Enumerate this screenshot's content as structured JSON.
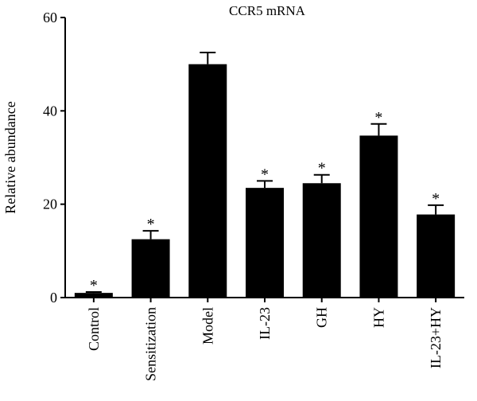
{
  "chart_data": {
    "type": "bar",
    "title": "CCR5 mRNA",
    "xlabel": "",
    "ylabel": "Relative abundance",
    "ylim": [
      0,
      60
    ],
    "yticks": [
      0,
      20,
      40,
      60
    ],
    "grid": false,
    "categories": [
      "Control",
      "Sensitization",
      "Model",
      "IL-23",
      "GH",
      "HY",
      "IL-23+HY"
    ],
    "values": [
      1.0,
      12.5,
      50.0,
      23.5,
      24.5,
      34.7,
      17.8
    ],
    "errors": [
      0.2,
      1.8,
      2.5,
      1.5,
      1.8,
      2.5,
      2.0
    ],
    "significance": [
      "*",
      "*",
      "",
      "*",
      "*",
      "*",
      "*"
    ],
    "bar_color": "#000000"
  }
}
